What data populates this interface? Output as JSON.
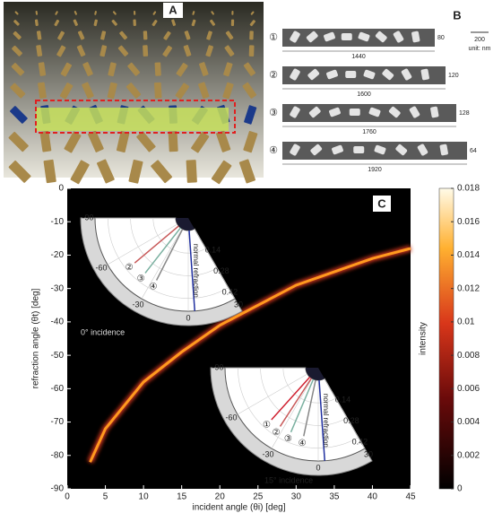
{
  "panel_a": {
    "label": "A"
  },
  "panel_b": {
    "label": "B",
    "scale_bar": "200",
    "unit": "unit: nm",
    "rows": [
      {
        "index": "①",
        "width": "1440",
        "height": "80"
      },
      {
        "index": "②",
        "width": "1600",
        "height": "120"
      },
      {
        "index": "③",
        "width": "1760",
        "height": "128"
      },
      {
        "index": "④",
        "width": "1920",
        "height": "64"
      }
    ]
  },
  "chart_data": {
    "type": "line",
    "label": "C",
    "x_label": "incident angle (θi) [deg]",
    "y_label": "refraction angle (θt) [deg]",
    "x": [
      3,
      5,
      10,
      15,
      20,
      25,
      30,
      35,
      40,
      45
    ],
    "series": [
      {
        "color": "#ff9a1f",
        "values": [
          -82,
          -72,
          -58,
          -49,
          -41,
          -35,
          -29,
          -25,
          -21,
          -18
        ]
      }
    ],
    "xlim": [
      0,
      45
    ],
    "xticks": [
      0,
      5,
      10,
      15,
      20,
      25,
      30,
      35,
      40,
      45
    ],
    "ylim": [
      -90,
      0
    ],
    "yticks": [
      -90,
      -80,
      -70,
      -60,
      -50,
      -40,
      -30,
      -20,
      -10,
      0
    ],
    "colorbar_label": "intensity",
    "clim": [
      0,
      0.018
    ],
    "colorbar_ticks": [
      0,
      0.002,
      0.004,
      0.006,
      0.008,
      0.01,
      0.012,
      0.014,
      0.016,
      0.018
    ],
    "insets": [
      {
        "title": "0° incidence",
        "angle_ticks": [
          -90,
          -60,
          -30,
          0,
          30
        ],
        "rlim": [
          0,
          0.5
        ],
        "radial_ticks": [
          0.14,
          0.28,
          0.42
        ],
        "rays": [
          "②",
          "③",
          "④"
        ],
        "normal_label": "normal refraction"
      },
      {
        "title": "15° incidence",
        "angle_ticks": [
          -90,
          -60,
          -30,
          0,
          30
        ],
        "rlim": [
          0,
          0.5
        ],
        "radial_ticks": [
          0.14,
          0.28,
          0.42
        ],
        "rays": [
          "①",
          "②",
          "③",
          "④"
        ],
        "normal_label": "normal refraction"
      }
    ]
  }
}
